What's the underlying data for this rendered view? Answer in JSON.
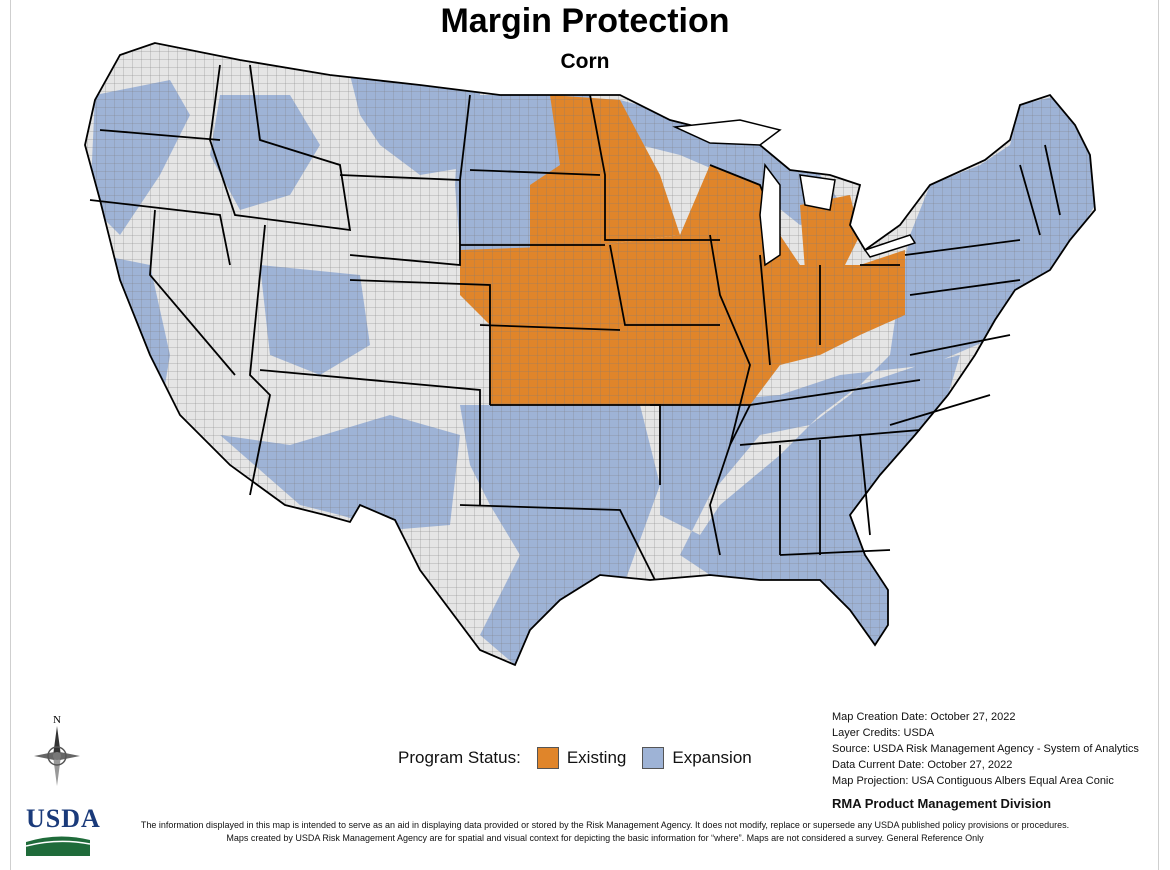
{
  "title": "Margin Protection",
  "subtitle": "Corn",
  "colors": {
    "existing": "#e0852a",
    "expansion": "#9eb3d6",
    "not_available": "#e5e5e5",
    "state_border": "#000000",
    "county_border": "#777777"
  },
  "legend": {
    "label": "Program Status:",
    "items": [
      {
        "label": "Existing",
        "color": "#e0852a"
      },
      {
        "label": "Expansion",
        "color": "#9eb3d6"
      }
    ]
  },
  "meta": {
    "creation": "Map Creation Date: October 27, 2022",
    "credits": "Layer Credits: USDA",
    "source": "Source: USDA Risk Management Agency - System of Analytics",
    "current": "Data Current Date: October 27, 2022",
    "projection": "Map Projection:  USA Contiguous Albers Equal Area Conic"
  },
  "division": "RMA Product Management Division",
  "disclaimer": {
    "line1": "The information displayed in this map is intended to serve as an aid in displaying data provided or stored by the Risk Management Agency. It does not modify, replace or supersede any USDA published policy provisions or procedures.",
    "line2": "Maps created by USDA Risk Management Agency are for spatial and visual context for depicting the basic information for “where”. Maps are not considered a survey. General Reference Only"
  },
  "compass_label": "N",
  "logo_text": "USDA"
}
